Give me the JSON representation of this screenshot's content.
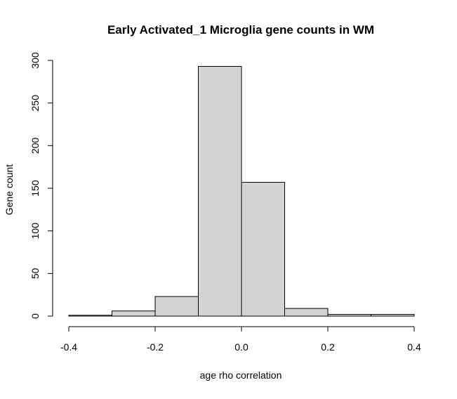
{
  "chart_data": {
    "type": "bar",
    "title": "Early Activated_1 Microglia gene counts in WM",
    "xlabel": "age rho correlation",
    "ylabel": "Gene count",
    "bins": [
      {
        "x0": -0.4,
        "x1": -0.3,
        "count": 1
      },
      {
        "x0": -0.3,
        "x1": -0.2,
        "count": 6
      },
      {
        "x0": -0.2,
        "x1": -0.1,
        "count": 23
      },
      {
        "x0": -0.1,
        "x1": 0.0,
        "count": 293
      },
      {
        "x0": 0.0,
        "x1": 0.1,
        "count": 157
      },
      {
        "x0": 0.1,
        "x1": 0.2,
        "count": 9
      },
      {
        "x0": 0.2,
        "x1": 0.3,
        "count": 2
      },
      {
        "x0": 0.3,
        "x1": 0.4,
        "count": 2
      }
    ],
    "xlim": [
      -0.4,
      0.4
    ],
    "ylim": [
      0,
      300
    ],
    "x_ticks": [
      "-0.4",
      "-0.2",
      "0.0",
      "0.2",
      "0.4"
    ],
    "x_tick_values": [
      -0.4,
      -0.2,
      0.0,
      0.2,
      0.4
    ],
    "y_ticks": [
      "0",
      "50",
      "100",
      "150",
      "200",
      "250",
      "300"
    ],
    "y_tick_values": [
      0,
      50,
      100,
      150,
      200,
      250,
      300
    ],
    "bar_fill": "#d3d3d3",
    "bar_stroke": "#000000",
    "grid": false,
    "legend": "none"
  }
}
